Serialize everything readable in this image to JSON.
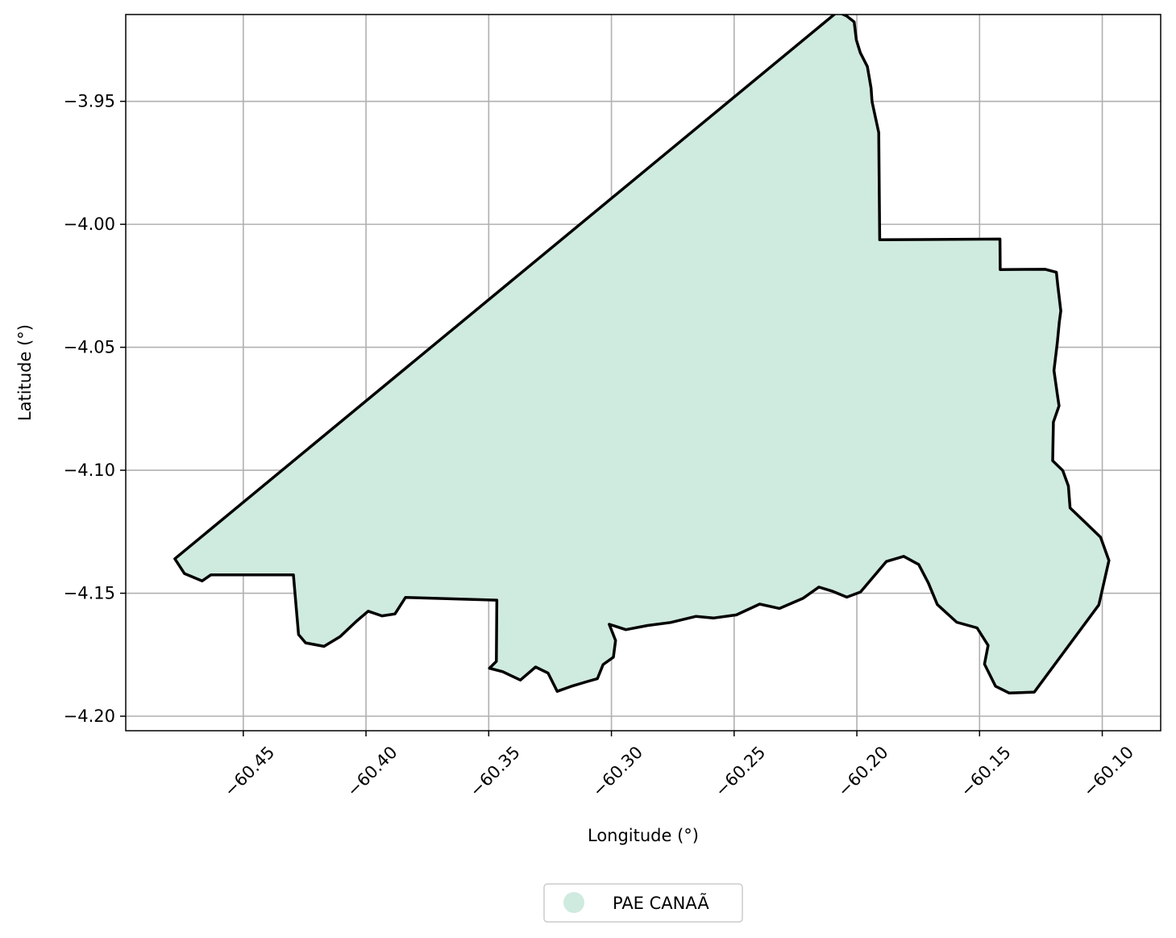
{
  "chart_data": {
    "type": "map",
    "xlabel": "Longitude (°)",
    "ylabel": "Latitude (°)",
    "xlim": [
      -60.4979,
      -60.0762
    ],
    "ylim": [
      -4.2059,
      -3.9147
    ],
    "xticks": [
      -60.45,
      -60.4,
      -60.35,
      -60.3,
      -60.25,
      -60.2,
      -60.15,
      -60.1
    ],
    "xtick_labels": [
      "−60.45",
      "−60.40",
      "−60.35",
      "−60.30",
      "−60.25",
      "−60.20",
      "−60.15",
      "−60.10"
    ],
    "yticks": [
      -3.95,
      -4.0,
      -4.05,
      -4.1,
      -4.15,
      -4.2
    ],
    "ytick_labels": [
      "−3.95",
      "−4.00",
      "−4.05",
      "−4.10",
      "−4.15",
      "−4.20"
    ],
    "grid": true,
    "legend_position": "bottom-center",
    "legend": [
      {
        "label": "PAE CANAÃ",
        "color": "#cfeade"
      }
    ],
    "fill_color": "#cfeade",
    "edge_color": "#000000",
    "boundary": [
      [
        -60.2079,
        -3.9136
      ],
      [
        -60.2042,
        -3.9153
      ],
      [
        -60.2011,
        -3.9177
      ],
      [
        -60.2002,
        -3.925
      ],
      [
        -60.1986,
        -3.9302
      ],
      [
        -60.1957,
        -3.9359
      ],
      [
        -60.1942,
        -3.9446
      ],
      [
        -60.1938,
        -3.9501
      ],
      [
        -60.1911,
        -3.9627
      ],
      [
        -60.1907,
        -4.0063
      ],
      [
        -60.1417,
        -4.006
      ],
      [
        -60.1416,
        -4.0184
      ],
      [
        -60.1232,
        -4.0183
      ],
      [
        -60.1187,
        -4.0195
      ],
      [
        -60.1181,
        -4.025
      ],
      [
        -60.1169,
        -4.0352
      ],
      [
        -60.1175,
        -4.0398
      ],
      [
        -60.1183,
        -4.048
      ],
      [
        -60.1197,
        -4.0594
      ],
      [
        -60.1184,
        -4.0685
      ],
      [
        -60.1176,
        -4.0738
      ],
      [
        -60.1199,
        -4.0804
      ],
      [
        -60.1202,
        -4.0961
      ],
      [
        -60.1161,
        -4.1001
      ],
      [
        -60.1138,
        -4.1064
      ],
      [
        -60.1131,
        -4.1153
      ],
      [
        -60.1007,
        -4.1272
      ],
      [
        -60.0973,
        -4.1367
      ],
      [
        -60.1014,
        -4.1547
      ],
      [
        -60.1277,
        -4.1902
      ],
      [
        -60.1379,
        -4.1906
      ],
      [
        -60.1435,
        -4.1878
      ],
      [
        -60.148,
        -4.1788
      ],
      [
        -60.1465,
        -4.1712
      ],
      [
        -60.151,
        -4.1641
      ],
      [
        -60.1593,
        -4.1618
      ],
      [
        -60.1672,
        -4.1546
      ],
      [
        -60.1709,
        -4.1458
      ],
      [
        -60.1748,
        -4.1383
      ],
      [
        -60.1809,
        -4.135
      ],
      [
        -60.188,
        -4.1371
      ],
      [
        -60.1985,
        -4.1495
      ],
      [
        -60.2041,
        -4.1516
      ],
      [
        -60.2102,
        -4.1491
      ],
      [
        -60.2155,
        -4.1475
      ],
      [
        -60.222,
        -4.1521
      ],
      [
        -60.2315,
        -4.1562
      ],
      [
        -60.2396,
        -4.1544
      ],
      [
        -60.2491,
        -4.1588
      ],
      [
        -60.2585,
        -4.1601
      ],
      [
        -60.2655,
        -4.1594
      ],
      [
        -60.2759,
        -4.1619
      ],
      [
        -60.2852,
        -4.1631
      ],
      [
        -60.2941,
        -4.1648
      ],
      [
        -60.3009,
        -4.1626
      ],
      [
        -60.2983,
        -4.1692
      ],
      [
        -60.2992,
        -4.176
      ],
      [
        -60.3034,
        -4.179
      ],
      [
        -60.3057,
        -4.1847
      ],
      [
        -60.3098,
        -4.1859
      ],
      [
        -60.3165,
        -4.1879
      ],
      [
        -60.3221,
        -4.1899
      ],
      [
        -60.3258,
        -4.1825
      ],
      [
        -60.3309,
        -4.18
      ],
      [
        -60.3371,
        -4.1853
      ],
      [
        -60.3443,
        -4.1819
      ],
      [
        -60.3497,
        -4.1805
      ],
      [
        -60.3469,
        -4.1777
      ],
      [
        -60.3467,
        -4.1528
      ],
      [
        -60.3839,
        -4.1517
      ],
      [
        -60.3882,
        -4.1584
      ],
      [
        -60.3935,
        -4.1592
      ],
      [
        -60.3991,
        -4.1573
      ],
      [
        -60.4038,
        -4.1613
      ],
      [
        -60.4105,
        -4.1676
      ],
      [
        -60.4171,
        -4.1716
      ],
      [
        -60.4246,
        -4.1702
      ],
      [
        -60.4275,
        -4.1668
      ],
      [
        -60.4296,
        -4.1425
      ],
      [
        -60.4632,
        -4.1425
      ],
      [
        -60.4668,
        -4.145
      ],
      [
        -60.474,
        -4.142
      ],
      [
        -60.4779,
        -4.136
      ],
      [
        -60.2079,
        -3.9136
      ]
    ]
  }
}
